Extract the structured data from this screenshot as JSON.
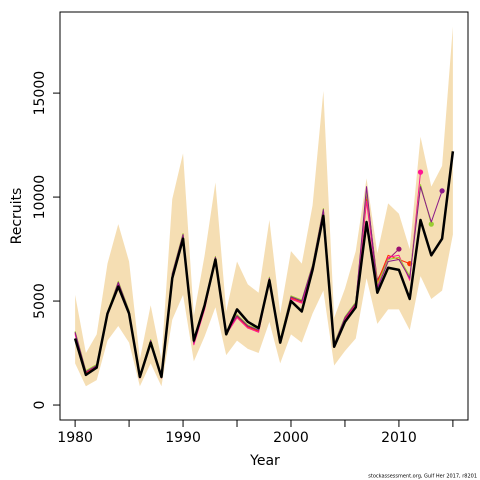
{
  "chart_data": {
    "type": "line",
    "x_label": "Year",
    "y_label": "Recruits",
    "footer": "stockassessment.org, Gulf Her 2017, r8201",
    "x": [
      1980,
      1981,
      1982,
      1983,
      1984,
      1985,
      1986,
      1987,
      1988,
      1989,
      1990,
      1991,
      1992,
      1993,
      1994,
      1995,
      1996,
      1997,
      1998,
      1999,
      2000,
      2001,
      2002,
      2003,
      2004,
      2005,
      2006,
      2007,
      2008,
      2009,
      2010,
      2011,
      2012,
      2013,
      2014,
      2015
    ],
    "xlim": [
      1978.6,
      2016.4
    ],
    "xticks": [
      1980,
      1990,
      2000,
      2010
    ],
    "xminor_ticks": [
      1985,
      1995,
      2005,
      2015
    ],
    "ylim": [
      -720,
      18900
    ],
    "yticks": [
      0,
      5000,
      10000,
      15000
    ],
    "band": {
      "color": "#f5deb3",
      "lower": [
        2000,
        900,
        1200,
        3100,
        3800,
        3000,
        900,
        2000,
        900,
        4100,
        5300,
        2100,
        3300,
        4700,
        2400,
        3100,
        2700,
        2500,
        4000,
        2000,
        3400,
        3000,
        4400,
        5500,
        1900,
        2600,
        3200,
        6100,
        3900,
        4600,
        4600,
        3600,
        6200,
        5100,
        5500,
        8200
      ],
      "upper": [
        5300,
        2500,
        3400,
        6800,
        8700,
        6900,
        2200,
        4800,
        2200,
        9900,
        12100,
        4300,
        7200,
        10700,
        4500,
        6900,
        5800,
        5400,
        8900,
        4400,
        7400,
        6800,
        9600,
        15100,
        4200,
        5600,
        7400,
        10900,
        7300,
        9700,
        9200,
        7500,
        12900,
        10500,
        11500,
        18200
      ]
    },
    "series": [
      {
        "color": "#9b0f6f",
        "end_marker": true,
        "values": [
          3500,
          1600,
          1900,
          4400,
          5900,
          4500,
          1350,
          3100,
          1350,
          6300,
          8200,
          3000,
          4700,
          7100,
          3500,
          4300,
          3800,
          3600,
          6100,
          3100,
          5200,
          5000,
          6700,
          9400,
          2900,
          4200,
          4900,
          10200,
          6000,
          7000,
          7500,
          null,
          null,
          null,
          null,
          null
        ]
      },
      {
        "color": "#ff3000",
        "end_marker": true,
        "values": [
          3450,
          1550,
          1850,
          4350,
          5850,
          4450,
          1300,
          3050,
          1300,
          6250,
          8150,
          2950,
          4650,
          7050,
          3450,
          4250,
          3750,
          3550,
          6050,
          3050,
          5150,
          4950,
          6650,
          9300,
          2850,
          4150,
          4850,
          9900,
          5900,
          7200,
          7000,
          6800,
          null,
          null,
          null,
          null
        ]
      },
      {
        "color": "#ff1493",
        "end_marker": true,
        "values": [
          3400,
          1500,
          1800,
          4300,
          5800,
          4400,
          1300,
          3000,
          1300,
          6200,
          8100,
          2900,
          4600,
          7000,
          3400,
          4200,
          3700,
          3500,
          6000,
          3000,
          5100,
          4900,
          6600,
          9200,
          2800,
          4100,
          4800,
          9800,
          5700,
          7100,
          7200,
          6000,
          11200,
          null,
          null,
          null
        ]
      },
      {
        "color": "#9acd32",
        "end_marker": true,
        "values": [
          3550,
          1650,
          1950,
          4450,
          5950,
          4550,
          1400,
          3150,
          1400,
          6350,
          8250,
          3050,
          4750,
          7150,
          3550,
          4350,
          3850,
          3650,
          6150,
          3150,
          5250,
          5050,
          6750,
          9450,
          2950,
          4250,
          4950,
          10300,
          5800,
          7000,
          7100,
          6200,
          10600,
          8700,
          null,
          null
        ]
      },
      {
        "color": "#8b1a89",
        "end_marker": true,
        "values": [
          3500,
          1600,
          1900,
          4400,
          5900,
          4500,
          1350,
          3100,
          1350,
          6300,
          8200,
          3000,
          4700,
          7100,
          3500,
          4300,
          3800,
          3600,
          6100,
          3100,
          5200,
          5000,
          6700,
          9400,
          2900,
          4200,
          4900,
          10500,
          5600,
          6900,
          7000,
          6100,
          10500,
          8800,
          10300,
          null
        ]
      },
      {
        "color": "#000000",
        "width": 2.5,
        "values": [
          3200,
          1450,
          1800,
          4400,
          5700,
          4400,
          1350,
          3000,
          1350,
          6100,
          8000,
          3100,
          4800,
          7000,
          3400,
          4600,
          4000,
          3700,
          6000,
          3000,
          5000,
          4500,
          6500,
          9100,
          2800,
          4000,
          4700,
          8800,
          5400,
          6600,
          6500,
          5100,
          8900,
          7200,
          8000,
          12200
        ]
      }
    ]
  }
}
